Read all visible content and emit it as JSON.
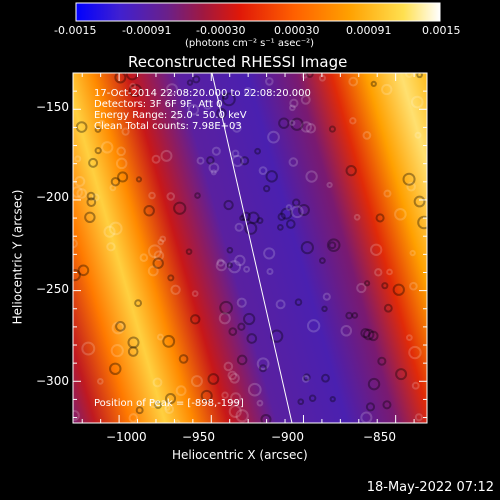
{
  "colorbar": {
    "ticks": [
      "-0.0015",
      "-0.00091",
      "-0.00030",
      "0.00030",
      "0.00091",
      "0.0015"
    ],
    "units": "(photons cm⁻² s⁻¹ asec⁻²)"
  },
  "title": "Reconstructed RHESSI Image",
  "overlay": {
    "line1": "17-Oct-2014 22:08:20.000 to 22:08:20.000",
    "line2": "Detectors: 3F 6F 9F, Att 0",
    "line3": "Energy Range: 25.0 - 50.0 keV",
    "line4": "Clean     Total counts: 7.98E+03",
    "peak": "Position of Peak = [-898,-199]"
  },
  "axes": {
    "xlabel": "Heliocentric X (arcsec)",
    "ylabel": "Heliocentric Y (arcsec)",
    "xticks": [
      {
        "label": "−1000",
        "value": -1000
      },
      {
        "label": "−950",
        "value": -950
      },
      {
        "label": "−900",
        "value": -900
      },
      {
        "label": "−850",
        "value": -850
      }
    ],
    "yticks": [
      {
        "label": "−150",
        "value": -150
      },
      {
        "label": "−200",
        "value": -200
      },
      {
        "label": "−250",
        "value": -250
      },
      {
        "label": "−300",
        "value": -300
      }
    ],
    "xrange": [
      -1025,
      -833
    ],
    "yrange": [
      -323,
      -130
    ]
  },
  "timestamp": "18-May-2022 07:12",
  "colors": {
    "cmap": [
      "#0000ff",
      "#3a1cd0",
      "#5a20a8",
      "#7a1a78",
      "#b01838",
      "#e02010",
      "#ff5a00",
      "#ff9a00",
      "#ffd030",
      "#ffff80",
      "#ffffff"
    ]
  }
}
